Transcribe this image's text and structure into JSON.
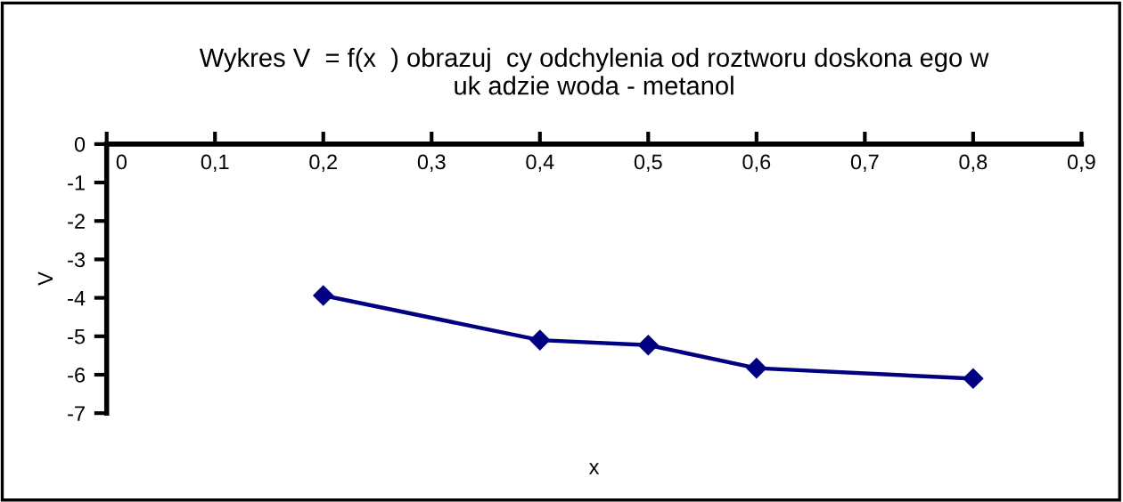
{
  "chart_data": {
    "type": "line",
    "title": "Wykres V  = f(x  ) obrazuj  cy odchylenia od roztworu doskona ego w\nuk adzie woda - metanol",
    "xlabel": "x",
    "ylabel": "V",
    "x": [
      0.2,
      0.4,
      0.5,
      0.6,
      0.8
    ],
    "series": [
      {
        "color": "#000080",
        "values": [
          -3.94,
          -5.1,
          -5.23,
          -5.83,
          -6.1
        ]
      }
    ],
    "xlim": [
      0,
      0.9
    ],
    "ylim": [
      -7,
      0
    ],
    "xticks": [
      {
        "value": 0,
        "label": "0"
      },
      {
        "value": 0.1,
        "label": "0,1"
      },
      {
        "value": 0.2,
        "label": "0,2"
      },
      {
        "value": 0.3,
        "label": "0,3"
      },
      {
        "value": 0.4,
        "label": "0,4"
      },
      {
        "value": 0.5,
        "label": "0,5"
      },
      {
        "value": 0.6,
        "label": "0,6"
      },
      {
        "value": 0.7,
        "label": "0,7"
      },
      {
        "value": 0.8,
        "label": "0,8"
      },
      {
        "value": 0.9,
        "label": "0,9"
      }
    ],
    "yticks": [
      0,
      -1,
      -2,
      -3,
      -4,
      -5,
      -6,
      -7
    ],
    "marker": "diamond",
    "line_style": "solid",
    "grid": false,
    "legend": false
  }
}
